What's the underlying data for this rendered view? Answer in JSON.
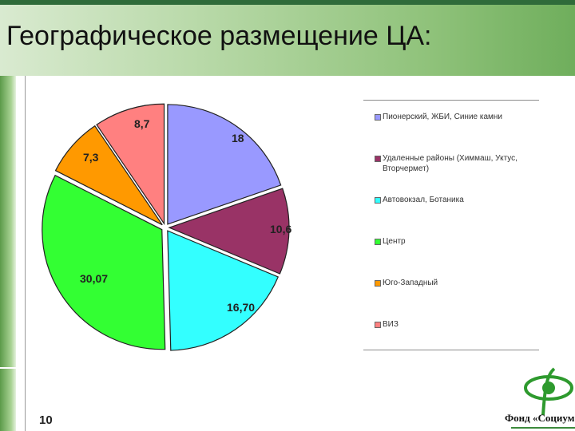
{
  "slide": {
    "title": "Географическое размещение ЦА:",
    "page_number": "10",
    "footer": "Фонд «Социум"
  },
  "chart_data": {
    "type": "pie",
    "categories": [
      "Пионерский, ЖБИ, Синие камни",
      "Удаленные районы (Химмаш, Уктус, Вторчермет)",
      "Автовокзал, Ботаника",
      "Центр",
      "Юго-Западный",
      "ВИЗ"
    ],
    "values": [
      18,
      10.6,
      16.7,
      30.07,
      7.3,
      8.7
    ],
    "labels": [
      "18",
      "10,6",
      "16,70",
      "30,07",
      "7,3",
      "8,7"
    ],
    "colors": [
      "#9999ff",
      "#993366",
      "#33ffff",
      "#33ff33",
      "#ff9900",
      "#ff8080"
    ],
    "legend_placement": "right",
    "legend": [
      {
        "label": "Пионерский, ЖБИ, Синие камни",
        "color": "#9999ff"
      },
      {
        "label": "Удаленные районы (Химмаш, Уктус, Вторчермет)",
        "color": "#993366"
      },
      {
        "label": "Автовокзал, Ботаника",
        "color": "#33ffff"
      },
      {
        "label": "Центр",
        "color": "#33ff33"
      },
      {
        "label": "Юго-Западный",
        "color": "#ff9900"
      },
      {
        "label": "ВИЗ",
        "color": "#ff8080"
      }
    ]
  }
}
